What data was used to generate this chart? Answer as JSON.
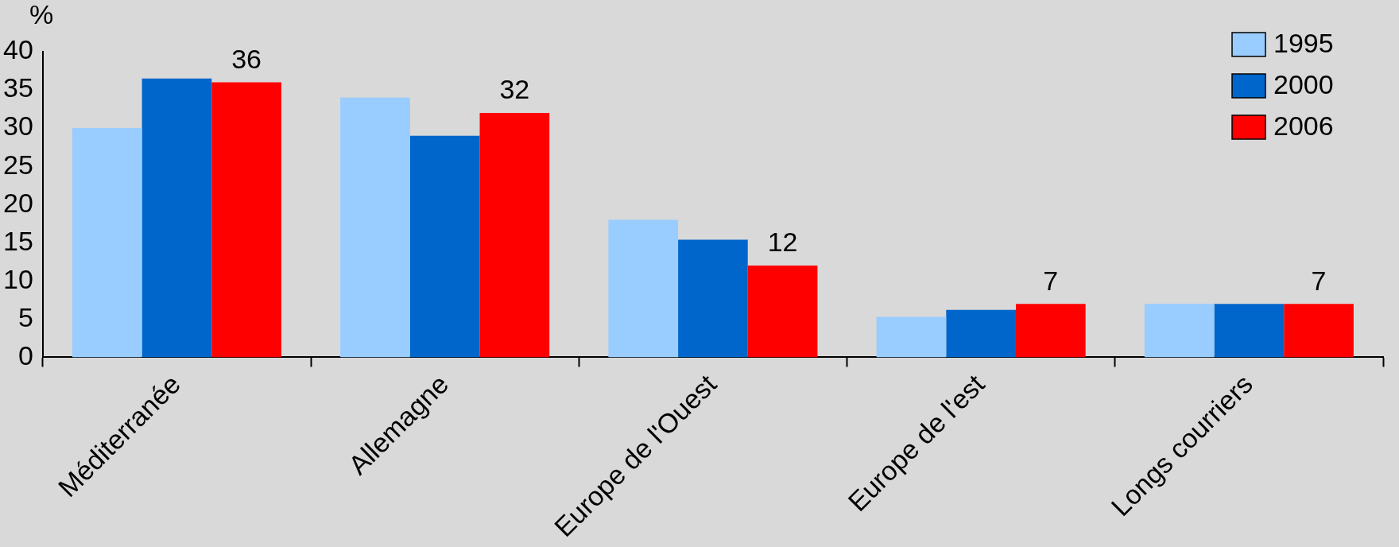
{
  "chart_data": {
    "type": "bar",
    "ylabel": "%",
    "categories": [
      "Méditerranée",
      "Allemagne",
      "Europe de l'Ouest",
      "Europe de l'est",
      "Longs courriers"
    ],
    "series": [
      {
        "name": "1995",
        "color": "#99ccff",
        "values": [
          30,
          34,
          18,
          5.3,
          7
        ]
      },
      {
        "name": "2000",
        "color": "#0066cc",
        "values": [
          36.5,
          29,
          15.4,
          6.2,
          7
        ]
      },
      {
        "name": "2006",
        "color": "#ff0000",
        "values": [
          36,
          32,
          12,
          7,
          7
        ],
        "value_labels": [
          "36",
          "32",
          "12",
          "7",
          "7"
        ]
      }
    ],
    "ylim": [
      0,
      40
    ],
    "yticks": [
      0,
      5,
      10,
      15,
      20,
      25,
      30,
      35,
      40
    ],
    "grid": false,
    "legend": "top right"
  }
}
